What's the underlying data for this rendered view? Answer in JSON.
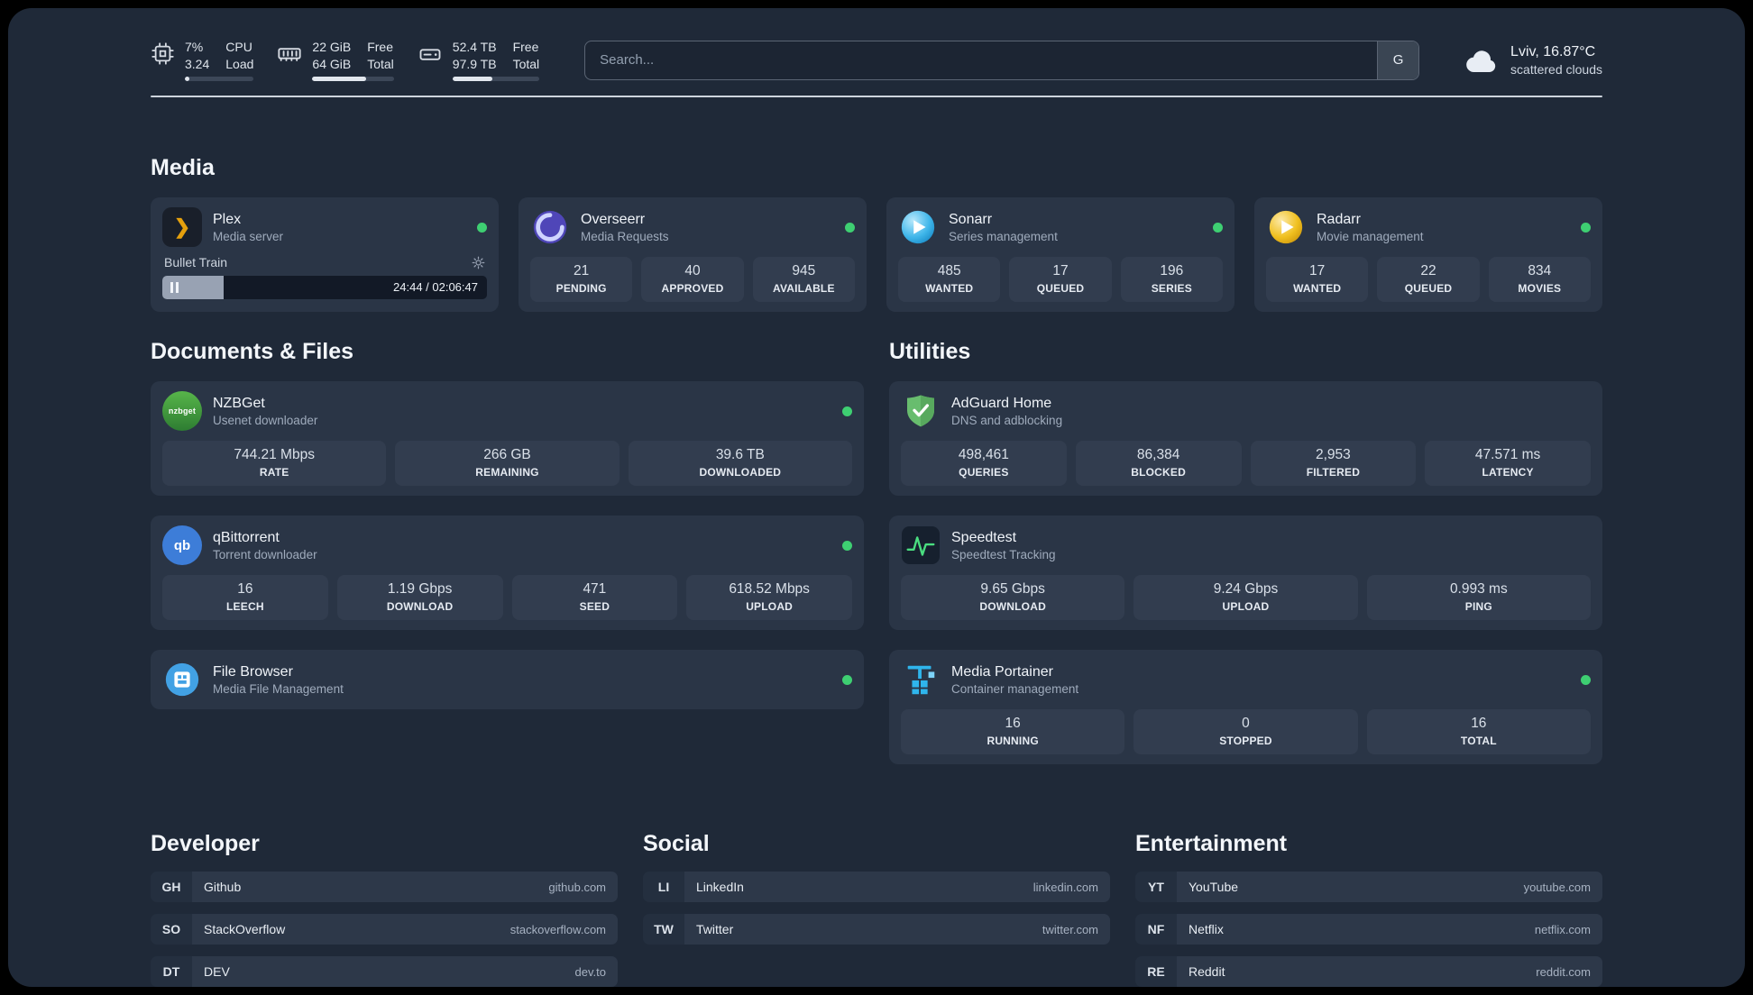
{
  "colors": {
    "background": "#1f2938",
    "card": "#2a3546",
    "stat_box": "#323d4f",
    "status_online": "#3ecf72",
    "plex_accent": "#e5a00d",
    "divider": "#cdd4dd"
  },
  "topbar": {
    "cpu": {
      "value1": "7%",
      "label1": "CPU",
      "value2": "3.24",
      "label2": "Load",
      "progress": 7
    },
    "memory": {
      "value1": "22 GiB",
      "label1": "Free",
      "value2": "64 GiB",
      "label2": "Total",
      "progress": 66
    },
    "disk": {
      "value1": "52.4 TB",
      "label1": "Free",
      "value2": "97.9 TB",
      "label2": "Total",
      "progress": 46
    },
    "search": {
      "placeholder": "Search...",
      "provider": "G"
    },
    "weather": {
      "location": "Lviv, 16.87°C",
      "condition": "scattered clouds"
    }
  },
  "media": {
    "title": "Media",
    "plex": {
      "name": "Plex",
      "subtitle": "Media server",
      "now_playing": "Bullet Train",
      "time": "24:44 / 02:06:47",
      "progress": 19
    },
    "overseerr": {
      "name": "Overseerr",
      "subtitle": "Media Requests",
      "stats": [
        {
          "value": "21",
          "label": "PENDING"
        },
        {
          "value": "40",
          "label": "APPROVED"
        },
        {
          "value": "945",
          "label": "AVAILABLE"
        }
      ]
    },
    "sonarr": {
      "name": "Sonarr",
      "subtitle": "Series management",
      "stats": [
        {
          "value": "485",
          "label": "WANTED"
        },
        {
          "value": "17",
          "label": "QUEUED"
        },
        {
          "value": "196",
          "label": "SERIES"
        }
      ]
    },
    "radarr": {
      "name": "Radarr",
      "subtitle": "Movie management",
      "stats": [
        {
          "value": "17",
          "label": "WANTED"
        },
        {
          "value": "22",
          "label": "QUEUED"
        },
        {
          "value": "834",
          "label": "MOVIES"
        }
      ]
    }
  },
  "documents": {
    "title": "Documents & Files",
    "nzbget": {
      "name": "NZBGet",
      "subtitle": "Usenet downloader",
      "stats": [
        {
          "value": "744.21 Mbps",
          "label": "RATE"
        },
        {
          "value": "266 GB",
          "label": "REMAINING"
        },
        {
          "value": "39.6 TB",
          "label": "DOWNLOADED"
        }
      ]
    },
    "qbittorrent": {
      "name": "qBittorrent",
      "subtitle": "Torrent downloader",
      "stats": [
        {
          "value": "16",
          "label": "LEECH"
        },
        {
          "value": "1.19 Gbps",
          "label": "DOWNLOAD"
        },
        {
          "value": "471",
          "label": "SEED"
        },
        {
          "value": "618.52 Mbps",
          "label": "UPLOAD"
        }
      ]
    },
    "filebrowser": {
      "name": "File Browser",
      "subtitle": "Media File Management"
    }
  },
  "utilities": {
    "title": "Utilities",
    "adguard": {
      "name": "AdGuard Home",
      "subtitle": "DNS and adblocking",
      "stats": [
        {
          "value": "498,461",
          "label": "QUERIES"
        },
        {
          "value": "86,384",
          "label": "BLOCKED"
        },
        {
          "value": "2,953",
          "label": "FILTERED"
        },
        {
          "value": "47.571 ms",
          "label": "LATENCY"
        }
      ]
    },
    "speedtest": {
      "name": "Speedtest",
      "subtitle": "Speedtest Tracking",
      "stats": [
        {
          "value": "9.65 Gbps",
          "label": "DOWNLOAD"
        },
        {
          "value": "9.24 Gbps",
          "label": "UPLOAD"
        },
        {
          "value": "0.993 ms",
          "label": "PING"
        }
      ]
    },
    "portainer": {
      "name": "Media Portainer",
      "subtitle": "Container management",
      "stats": [
        {
          "value": "16",
          "label": "RUNNING"
        },
        {
          "value": "0",
          "label": "STOPPED"
        },
        {
          "value": "16",
          "label": "TOTAL"
        }
      ]
    }
  },
  "bookmarks": {
    "developer": {
      "title": "Developer",
      "items": [
        {
          "abbr": "GH",
          "name": "Github",
          "domain": "github.com"
        },
        {
          "abbr": "SO",
          "name": "StackOverflow",
          "domain": "stackoverflow.com"
        },
        {
          "abbr": "DT",
          "name": "DEV",
          "domain": "dev.to"
        }
      ]
    },
    "social": {
      "title": "Social",
      "items": [
        {
          "abbr": "LI",
          "name": "LinkedIn",
          "domain": "linkedin.com"
        },
        {
          "abbr": "TW",
          "name": "Twitter",
          "domain": "twitter.com"
        }
      ]
    },
    "entertainment": {
      "title": "Entertainment",
      "items": [
        {
          "abbr": "YT",
          "name": "YouTube",
          "domain": "youtube.com"
        },
        {
          "abbr": "NF",
          "name": "Netflix",
          "domain": "netflix.com"
        },
        {
          "abbr": "RE",
          "name": "Reddit",
          "domain": "reddit.com"
        }
      ]
    }
  },
  "icons": {
    "nzbget_text": "nzbget",
    "qbittorrent_text": "qb",
    "plex_chevron": "❯"
  }
}
